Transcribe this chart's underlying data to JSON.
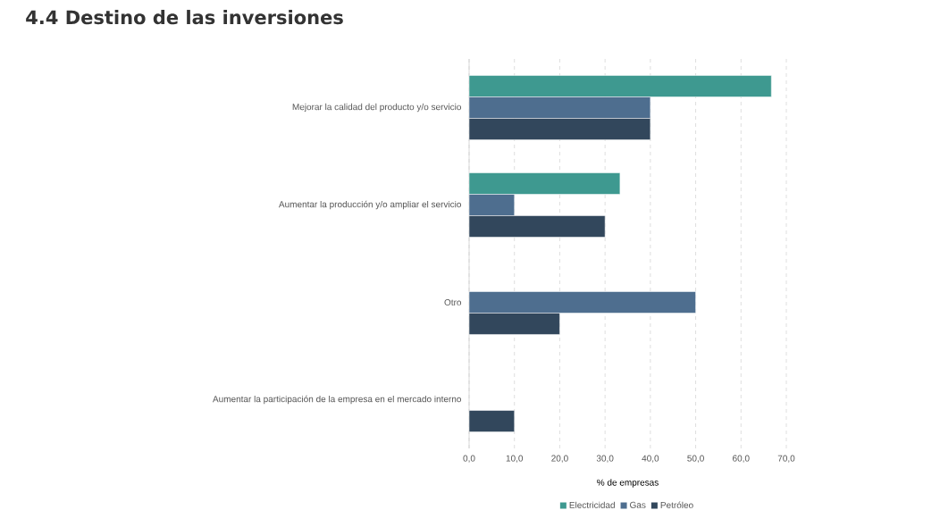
{
  "chart_data": {
    "type": "bar",
    "orientation": "horizontal",
    "title": "4.4 Destino de las inversiones",
    "categories": [
      "Mejorar la calidad del producto y/o servicio",
      "Aumentar la producción y/o ampliar el servicio",
      "Otro",
      "Aumentar la participación de la empresa en el mercado interno"
    ],
    "series": [
      {
        "name": "Electricidad",
        "color": "#3e9990",
        "values": [
          66.7,
          33.3,
          null,
          null
        ]
      },
      {
        "name": "Gas",
        "color": "#4e6e8f",
        "values": [
          40,
          10,
          50,
          null
        ]
      },
      {
        "name": "Petróleo",
        "color": "#32475c",
        "values": [
          40,
          30,
          20,
          10
        ]
      }
    ],
    "xlabel": "% de empresas",
    "xlim": [
      0,
      70
    ],
    "xticks": [
      {
        "value": 0,
        "label": "0,0"
      },
      {
        "value": 10,
        "label": "10,0"
      },
      {
        "value": 20,
        "label": "20,0"
      },
      {
        "value": 30,
        "label": "30,0"
      },
      {
        "value": 40,
        "label": "40,0"
      },
      {
        "value": 50,
        "label": "50,0"
      },
      {
        "value": 60,
        "label": "60,0"
      },
      {
        "value": 70,
        "label": "70,0"
      }
    ],
    "grid": "x",
    "legend": "bottom"
  }
}
